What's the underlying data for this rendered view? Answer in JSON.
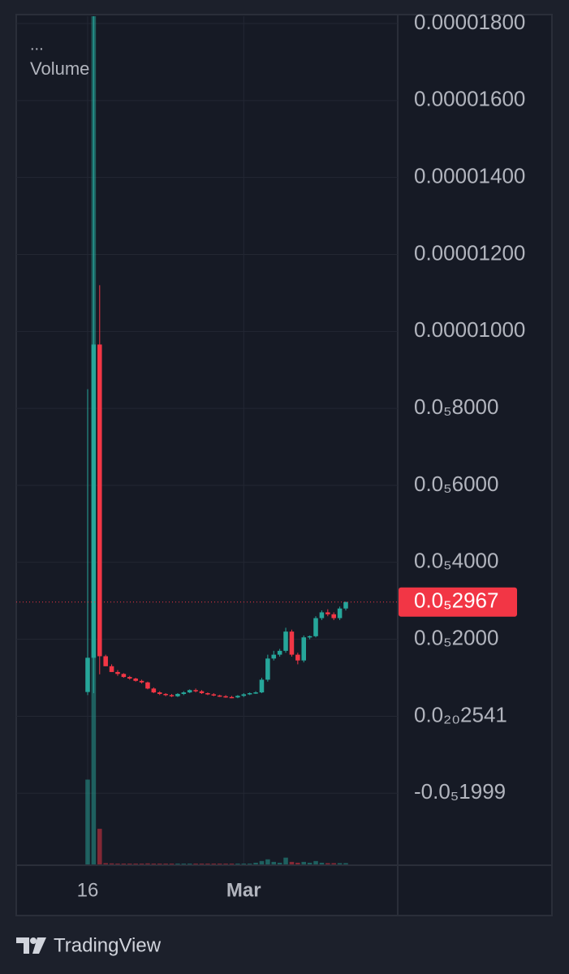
{
  "menu": "...",
  "brand": "TradingView",
  "chart_data": {
    "type": "candlestick",
    "pane_label": "Volume",
    "categories": [
      "16",
      null,
      null,
      null,
      null,
      null,
      null,
      null,
      null,
      null,
      null,
      null,
      null,
      null,
      null,
      null,
      null,
      null,
      null,
      null,
      null,
      null,
      null,
      null,
      null,
      null,
      "Mar",
      null,
      null,
      null,
      null,
      null,
      null,
      null,
      null,
      null,
      null,
      null,
      null,
      null,
      null,
      null,
      null,
      null
    ],
    "open": [
      6.3e-07,
      1.52e-06,
      9.66e-06,
      1.56e-06,
      1.3e-06,
      1.15e-06,
      1.1e-06,
      1.02e-06,
      9.8e-07,
      9.2e-07,
      8.8e-07,
      7.2e-07,
      6.2e-07,
      5.8e-07,
      5.5e-07,
      5.2e-07,
      5.8e-07,
      6.2e-07,
      6.8e-07,
      6.5e-07,
      6e-07,
      5.7e-07,
      5.4e-07,
      5.2e-07,
      5e-07,
      4.9e-07,
      5.3e-07,
      5.7e-07,
      6e-07,
      6.2e-07,
      9.5e-07,
      1.5e-06,
      1.6e-06,
      1.7e-06,
      2.2e-06,
      1.6e-06,
      1.45e-06,
      2.05e-06,
      2.08e-06,
      2.55e-06,
      2.7e-06,
      2.65e-06,
      2.55e-06,
      2.8e-06
    ],
    "high": [
      8.5e-06,
      1.82e-05,
      1.12e-05,
      1.6e-06,
      1.35e-06,
      1.2e-06,
      1.12e-06,
      1.05e-06,
      1e-06,
      9.5e-07,
      9e-07,
      7.5e-07,
      6.5e-07,
      6e-07,
      5.8e-07,
      6e-07,
      6.5e-07,
      7e-07,
      7.2e-07,
      6.8e-07,
      6.2e-07,
      6e-07,
      5.6e-07,
      5.5e-07,
      5.3e-07,
      5.5e-07,
      6e-07,
      6.2e-07,
      6.5e-07,
      1e-06,
      1.6e-06,
      1.7e-06,
      1.75e-06,
      2.3e-06,
      2.25e-06,
      1.65e-06,
      2.1e-06,
      2.1e-06,
      2.6e-06,
      2.75e-06,
      2.78e-06,
      2.7e-06,
      2.85e-06,
      2.98e-06
    ],
    "low": [
      5.5e-07,
      6e-07,
      1.09e-06,
      1.3e-06,
      1.15e-06,
      1.05e-06,
      1e-06,
      9.5e-07,
      9e-07,
      8.5e-07,
      7e-07,
      6e-07,
      5.5e-07,
      5.2e-07,
      5e-07,
      5e-07,
      5.5e-07,
      6e-07,
      6.2e-07,
      5.8e-07,
      5.5e-07,
      5.2e-07,
      5e-07,
      4.8e-07,
      4.7e-07,
      4.7e-07,
      5e-07,
      5.5e-07,
      5.8e-07,
      6e-07,
      9e-07,
      1.45e-06,
      1.55e-06,
      1.65e-06,
      1.55e-06,
      1.35e-06,
      1.4e-06,
      2e-06,
      2.05e-06,
      2.5e-06,
      2.6e-06,
      2.5e-06,
      2.5e-06,
      2.75e-06
    ],
    "close": [
      1.52e-06,
      9.66e-06,
      1.56e-06,
      1.3e-06,
      1.15e-06,
      1.1e-06,
      1.02e-06,
      9.8e-07,
      9.2e-07,
      8.8e-07,
      7.2e-07,
      6.2e-07,
      5.8e-07,
      5.5e-07,
      5.2e-07,
      5.8e-07,
      6.2e-07,
      6.8e-07,
      6.5e-07,
      6e-07,
      5.7e-07,
      5.4e-07,
      5.2e-07,
      5e-07,
      4.9e-07,
      5.3e-07,
      5.7e-07,
      6e-07,
      6.2e-07,
      9.5e-07,
      1.5e-06,
      1.6e-06,
      1.7e-06,
      2.2e-06,
      1.6e-06,
      1.45e-06,
      2.05e-06,
      2.08e-06,
      2.55e-06,
      2.7e-06,
      2.65e-06,
      2.55e-06,
      2.8e-06,
      2.967e-06
    ],
    "volume": [
      10,
      100,
      4.2,
      0.15,
      0.12,
      0.1,
      0.1,
      0.1,
      0.1,
      0.1,
      0.12,
      0.1,
      0.1,
      0.1,
      0.1,
      0.1,
      0.1,
      0.1,
      0.1,
      0.1,
      0.1,
      0.1,
      0.1,
      0.1,
      0.1,
      0.1,
      0.1,
      0.1,
      0.2,
      0.4,
      0.6,
      0.3,
      0.2,
      0.8,
      0.3,
      0.2,
      0.3,
      0.2,
      0.4,
      0.2,
      0.15,
      0.15,
      0.15,
      0.15
    ],
    "up_color": "#26a69a",
    "down_color": "#f23645",
    "ylim": [
      -3.85e-06,
      1.819e-05
    ],
    "yticks": [
      {
        "value": 1.8e-05,
        "label": "0.00001800"
      },
      {
        "value": 1.6e-05,
        "label": "0.00001600"
      },
      {
        "value": 1.4e-05,
        "label": "0.00001400"
      },
      {
        "value": 1.2e-05,
        "label": "0.00001200"
      },
      {
        "value": 1e-05,
        "label": "0.00001000"
      },
      {
        "value": 8e-06,
        "label": "0.0₅8000"
      },
      {
        "value": 6e-06,
        "label": "0.0₅6000"
      },
      {
        "value": 4e-06,
        "label": "0.0₅4000"
      },
      {
        "value": 2e-06,
        "label": "0.0₅2000"
      },
      {
        "value": 2.541e-21,
        "label": "0.0₂₀2541"
      },
      {
        "value": -1.999e-06,
        "label": "-0.0₅1999"
      }
    ],
    "grid": true,
    "last_price": {
      "value": 2.967e-06,
      "label": "0.0₅2967"
    }
  }
}
